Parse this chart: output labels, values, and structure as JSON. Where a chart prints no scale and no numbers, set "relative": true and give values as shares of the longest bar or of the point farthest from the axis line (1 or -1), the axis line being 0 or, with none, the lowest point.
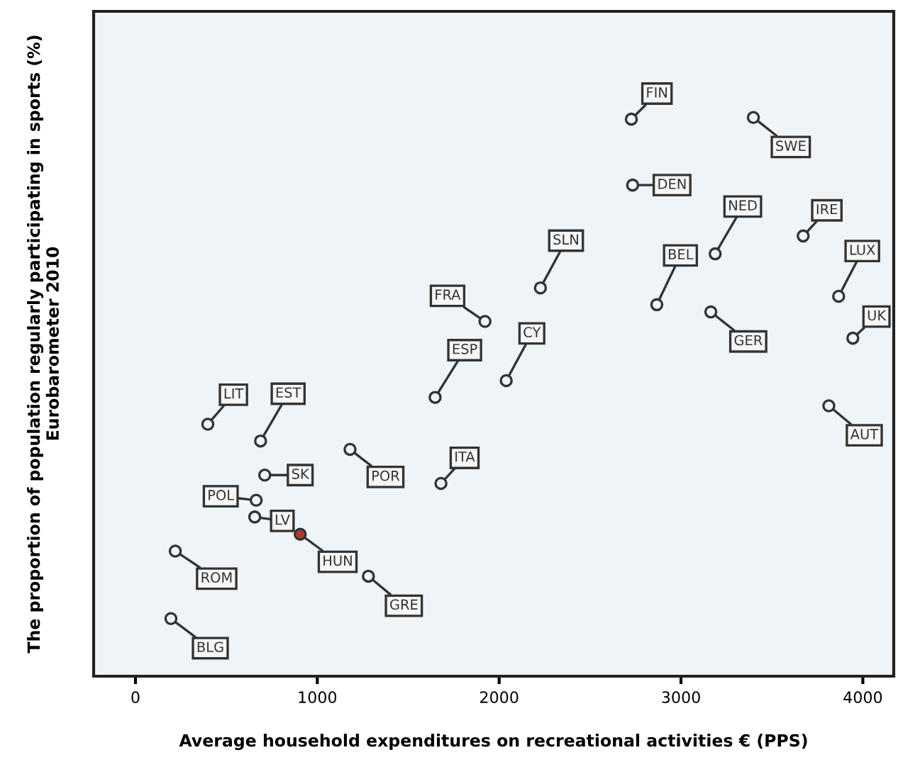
{
  "chart_data": {
    "type": "scatter",
    "relative": true,
    "xlabel": "Average household expenditures on recreational activities € (PPS)",
    "ylabel": "The proportion of population regularly participating in sports (%)\nEurobarometer 2010",
    "xlim": [
      -230,
      4170
    ],
    "xticks": [
      0,
      1000,
      2000,
      3000,
      4000
    ],
    "tick_labels": "x",
    "grid": false,
    "marker": "circle",
    "series": [
      {
        "x": [
          2727,
          3398,
          2734,
          3188,
          3672,
          3867,
          3945,
          2227,
          2867,
          3164,
          1922,
          2039,
          3813,
          1648,
          1680,
          398,
          688,
          711,
          1180,
          664,
          656,
          906,
          219,
          1281,
          195
        ],
        "values": [
          0.997,
          1.0,
          0.879,
          0.756,
          0.788,
          0.68,
          0.605,
          0.695,
          0.665,
          0.652,
          0.635,
          0.529,
          0.484,
          0.499,
          0.345,
          0.451,
          0.421,
          0.36,
          0.406,
          0.315,
          0.285,
          0.254,
          0.224,
          0.179,
          0.103
        ],
        "colors": [
          "#eef4f8",
          "#eef4f8",
          "#eef4f8",
          "#eef4f8",
          "#eef4f8",
          "#eef4f8",
          "#eef4f8",
          "#eef4f8",
          "#eef4f8",
          "#eef4f8",
          "#eef4f8",
          "#eef4f8",
          "#eef4f8",
          "#eef4f8",
          "#eef4f8",
          "#eef4f8",
          "#eef4f8",
          "#eef4f8",
          "#eef4f8",
          "#eef4f8",
          "#eef4f8",
          "#b03a2e",
          "#eef4f8",
          "#eef4f8",
          "#eef4f8"
        ]
      }
    ],
    "annotations": [
      {
        "text": "FIN",
        "x": 2727,
        "y": 0.997
      },
      {
        "text": "SWE",
        "x": 3398,
        "y": 1.0
      },
      {
        "text": "DEN",
        "x": 2734,
        "y": 0.879
      },
      {
        "text": "NED",
        "x": 3188,
        "y": 0.756
      },
      {
        "text": "IRE",
        "x": 3672,
        "y": 0.788
      },
      {
        "text": "LUX",
        "x": 3867,
        "y": 0.68
      },
      {
        "text": "UK",
        "x": 3945,
        "y": 0.605
      },
      {
        "text": "SLN",
        "x": 2227,
        "y": 0.695
      },
      {
        "text": "BEL",
        "x": 2867,
        "y": 0.665
      },
      {
        "text": "GER",
        "x": 3164,
        "y": 0.652
      },
      {
        "text": "FRA",
        "x": 1922,
        "y": 0.635
      },
      {
        "text": "CY",
        "x": 2039,
        "y": 0.529
      },
      {
        "text": "AUT",
        "x": 3813,
        "y": 0.484
      },
      {
        "text": "ESP",
        "x": 1648,
        "y": 0.499
      },
      {
        "text": "ITA",
        "x": 1680,
        "y": 0.345
      },
      {
        "text": "LIT",
        "x": 398,
        "y": 0.451
      },
      {
        "text": "EST",
        "x": 688,
        "y": 0.421
      },
      {
        "text": "SK",
        "x": 711,
        "y": 0.36
      },
      {
        "text": "POR",
        "x": 1180,
        "y": 0.406
      },
      {
        "text": "POL",
        "x": 664,
        "y": 0.315
      },
      {
        "text": "LV",
        "x": 656,
        "y": 0.285
      },
      {
        "text": "HUN",
        "x": 906,
        "y": 0.254
      },
      {
        "text": "ROM",
        "x": 219,
        "y": 0.224
      },
      {
        "text": "GRE",
        "x": 1281,
        "y": 0.179
      },
      {
        "text": "BLG",
        "x": 195,
        "y": 0.103
      }
    ]
  }
}
